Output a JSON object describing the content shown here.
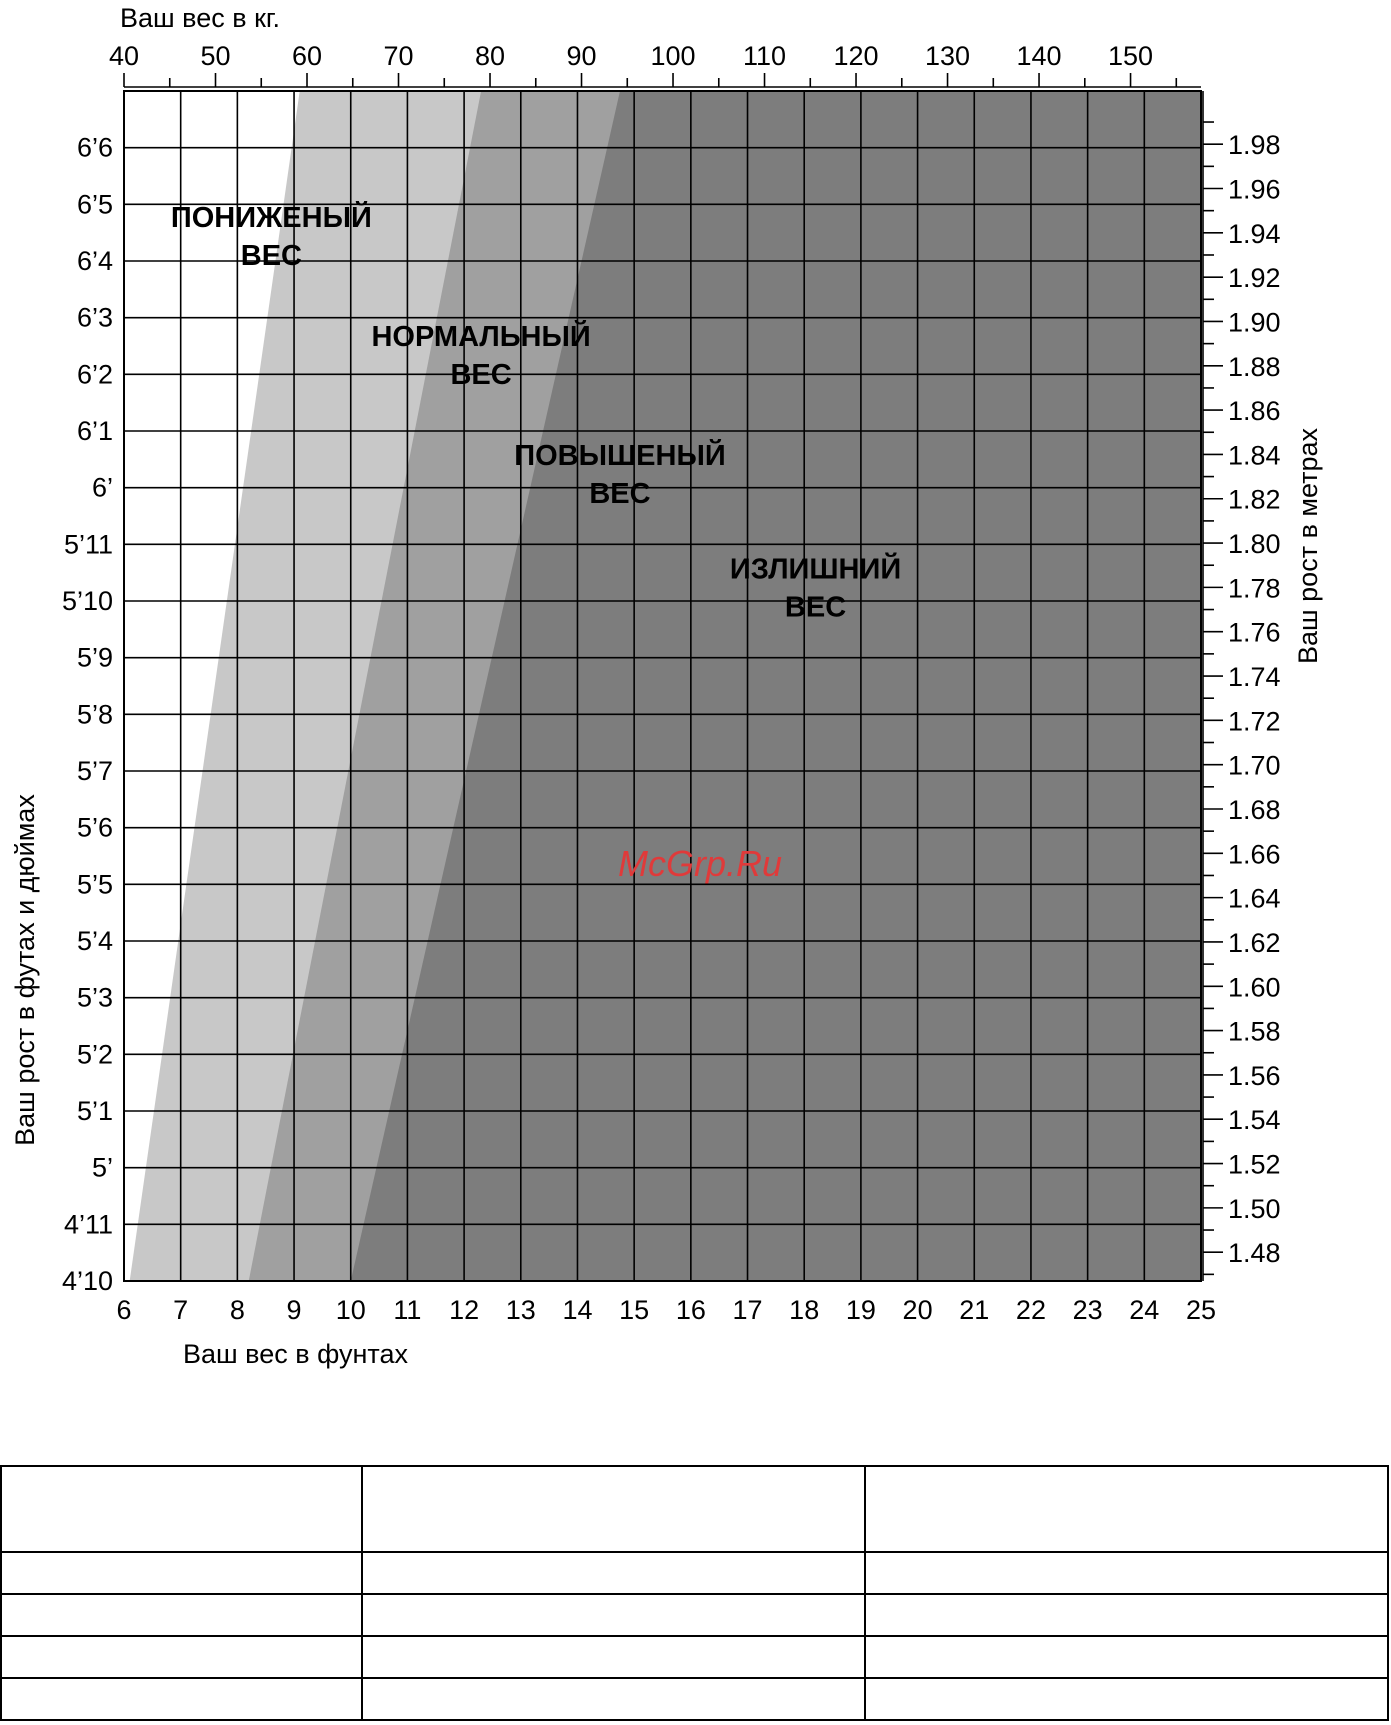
{
  "chart_data": {
    "type": "area",
    "title": "",
    "x_top": {
      "label": "Ваш вес в кг.",
      "ticks": [
        40,
        50,
        60,
        70,
        80,
        90,
        100,
        110,
        120,
        130,
        140,
        150
      ],
      "range": [
        40,
        157.7
      ]
    },
    "x_bottom": {
      "label": "Ваш вес в фунтах",
      "ticks": [
        "6",
        "7",
        "8",
        "9",
        "10",
        "11",
        "12",
        "13",
        "14",
        "15",
        "16",
        "17",
        "18",
        "19",
        "20",
        "21",
        "22",
        "23",
        "24",
        "25"
      ],
      "range": [
        6,
        25
      ],
      "scale_note": "стоуны"
    },
    "y_left": {
      "label": "Ваш рост в футах и дюймах",
      "ticks": [
        "4’10",
        "4’11",
        "5’",
        "5’1",
        "5’2",
        "5’3",
        "5’4",
        "5’5",
        "5’6",
        "5’7",
        "5’8",
        "5’9",
        "5’10",
        "5’11",
        "6’",
        "6’1",
        "6’2",
        "6’3",
        "6’4",
        "6’5",
        "6’6"
      ],
      "range_inches": [
        58,
        79
      ]
    },
    "y_right": {
      "label": "Ваш рост в метрах",
      "ticks": [
        "1.48",
        "1.50",
        "1.52",
        "1.54",
        "1.56",
        "1.58",
        "1.60",
        "1.62",
        "1.64",
        "1.66",
        "1.68",
        "1.70",
        "1.72",
        "1.74",
        "1.76",
        "1.78",
        "1.80",
        "1.82",
        "1.84",
        "1.86",
        "1.88",
        "1.90",
        "1.92",
        "1.94",
        "1.96",
        "1.98"
      ],
      "range": [
        1.467,
        2.004
      ]
    },
    "zones": [
      {
        "name": "ПОНИЖЕНЫЙ ВЕС",
        "label_lines": [
          "ПОНИЖЕНЫЙ",
          "ВЕС"
        ],
        "color": "#ffffff",
        "upper_boundary_stone": [
          [
            6.1,
            58
          ],
          [
            9.1,
            79
          ]
        ]
      },
      {
        "name": "НОРМАЛЬНЫЙ ВЕС",
        "label_lines": [
          "НОРМАЛЬНЫЙ",
          "ВЕС"
        ],
        "color": "#c8c8c8",
        "upper_boundary_stone": [
          [
            8.2,
            58
          ],
          [
            12.3,
            79
          ]
        ]
      },
      {
        "name": "ПОВЫШЕНЫЙ ВЕС",
        "label_lines": [
          "ПОВЫШЕНЫЙ",
          "ВЕС"
        ],
        "color": "#a0a0a0",
        "upper_boundary_stone": [
          [
            10.0,
            58
          ],
          [
            14.75,
            79
          ]
        ]
      },
      {
        "name": "ИЗЛИШНИЙ ВЕС",
        "label_lines": [
          "ИЗЛИШНИЙ",
          "ВЕС"
        ],
        "color": "#7d7d7d",
        "upper_boundary_stone": null
      }
    ],
    "label_anchors": [
      [
        8.6,
        76.6
      ],
      [
        12.3,
        74.5
      ],
      [
        14.75,
        72.4
      ],
      [
        18.2,
        70.4
      ]
    ],
    "grid": true,
    "watermark": "McGrp.Ru",
    "watermark_color": "#e03a3a"
  },
  "table": {
    "rows": [
      [
        "",
        "",
        ""
      ],
      [
        "",
        "",
        ""
      ],
      [
        "",
        "",
        ""
      ],
      [
        "",
        "",
        ""
      ],
      [
        "",
        "",
        ""
      ]
    ]
  }
}
